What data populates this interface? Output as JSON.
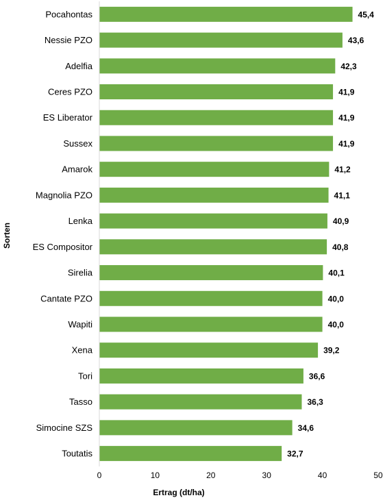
{
  "chart_data": {
    "type": "bar",
    "orientation": "horizontal",
    "categories": [
      "Pocahontas",
      "Nessie PZO",
      "Adelfia",
      "Ceres PZO",
      "ES Liberator",
      "Sussex",
      "Amarok",
      "Magnolia PZO",
      "Lenka",
      "ES Compositor",
      "Sirelia",
      "Cantate PZO",
      "Wapiti",
      "Xena",
      "Tori",
      "Tasso",
      "Simocine SZS",
      "Toutatis"
    ],
    "values": [
      45.4,
      43.6,
      42.3,
      41.9,
      41.9,
      41.9,
      41.2,
      41.1,
      40.9,
      40.8,
      40.1,
      40.0,
      40.0,
      39.2,
      36.6,
      36.3,
      34.6,
      32.7
    ],
    "value_labels": [
      "45,4",
      "43,6",
      "42,3",
      "41,9",
      "41,9",
      "41,9",
      "41,2",
      "41,1",
      "40,9",
      "40,8",
      "40,1",
      "40,0",
      "40,0",
      "39,2",
      "36,6",
      "36,3",
      "34,6",
      "32,7"
    ],
    "xlabel": "Ertrag (dt/ha)",
    "ylabel": "Sorten",
    "xlim": [
      0,
      50
    ],
    "xticks": [
      "0",
      "10",
      "20",
      "30",
      "40",
      "50"
    ],
    "grid": false,
    "bar_color": "#70ad47"
  }
}
